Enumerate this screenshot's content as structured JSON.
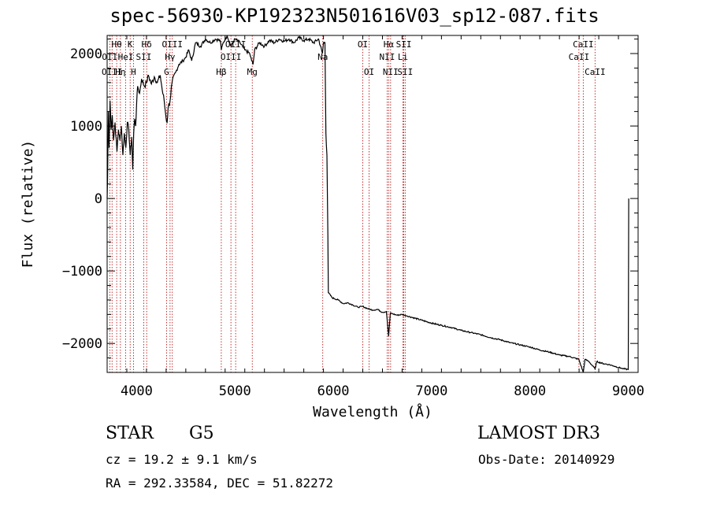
{
  "title": "spec-56930-KP192323N501616V03_sp12-087.fits",
  "chart_data": {
    "type": "line",
    "title": "spec-56930-KP192323N501616V03_sp12-087.fits",
    "xlabel": "Wavelength (Å)",
    "ylabel": "Flux (relative)",
    "xlim": [
      3700,
      9100
    ],
    "ylim": [
      -2400,
      2250
    ],
    "xticks": [
      4000,
      5000,
      6000,
      7000,
      8000,
      9000
    ],
    "yticks": [
      -2000,
      -1000,
      0,
      1000,
      2000
    ],
    "series": [
      {
        "name": "flux",
        "points": [
          [
            3700,
            0
          ],
          [
            3705,
            300
          ],
          [
            3712,
            1200
          ],
          [
            3720,
            700
          ],
          [
            3730,
            1350
          ],
          [
            3740,
            950
          ],
          [
            3752,
            1150
          ],
          [
            3765,
            800
          ],
          [
            3780,
            1050
          ],
          [
            3800,
            650
          ],
          [
            3815,
            950
          ],
          [
            3830,
            800
          ],
          [
            3845,
            1000
          ],
          [
            3860,
            600
          ],
          [
            3875,
            900
          ],
          [
            3890,
            700
          ],
          [
            3905,
            1050
          ],
          [
            3920,
            950
          ],
          [
            3935,
            600
          ],
          [
            3950,
            850
          ],
          [
            3960,
            400
          ],
          [
            3970,
            900
          ],
          [
            3980,
            1100
          ],
          [
            3990,
            1000
          ],
          [
            4000,
            1300
          ],
          [
            4010,
            1550
          ],
          [
            4030,
            1450
          ],
          [
            4050,
            1650
          ],
          [
            4080,
            1550
          ],
          [
            4100,
            1600
          ],
          [
            4120,
            1700
          ],
          [
            4150,
            1580
          ],
          [
            4180,
            1680
          ],
          [
            4210,
            1600
          ],
          [
            4240,
            1700
          ],
          [
            4260,
            1500
          ],
          [
            4280,
            1350
          ],
          [
            4300,
            1100
          ],
          [
            4310,
            1050
          ],
          [
            4320,
            1250
          ],
          [
            4340,
            1350
          ],
          [
            4360,
            1600
          ],
          [
            4400,
            1750
          ],
          [
            4430,
            1850
          ],
          [
            4470,
            1900
          ],
          [
            4500,
            1950
          ],
          [
            4530,
            2050
          ],
          [
            4560,
            1900
          ],
          [
            4600,
            2150
          ],
          [
            4650,
            2100
          ],
          [
            4700,
            2200
          ],
          [
            4750,
            2150
          ],
          [
            4800,
            2200
          ],
          [
            4850,
            2180
          ],
          [
            4861,
            2050
          ],
          [
            4880,
            2150
          ],
          [
            4920,
            2250
          ],
          [
            4960,
            2100
          ],
          [
            5000,
            2200
          ],
          [
            5050,
            2150
          ],
          [
            5100,
            2050
          ],
          [
            5150,
            2000
          ],
          [
            5170,
            1900
          ],
          [
            5184,
            1850
          ],
          [
            5200,
            2050
          ],
          [
            5250,
            2150
          ],
          [
            5300,
            2100
          ],
          [
            5350,
            2180
          ],
          [
            5400,
            2150
          ],
          [
            5450,
            2200
          ],
          [
            5500,
            2170
          ],
          [
            5550,
            2200
          ],
          [
            5600,
            2150
          ],
          [
            5650,
            2220
          ],
          [
            5700,
            2180
          ],
          [
            5750,
            2200
          ],
          [
            5800,
            2150
          ],
          [
            5850,
            2200
          ],
          [
            5890,
            2000
          ],
          [
            5900,
            2150
          ],
          [
            5915,
            2150
          ],
          [
            5925,
            900
          ],
          [
            5935,
            600
          ],
          [
            5945,
            -500
          ],
          [
            5950,
            -1300
          ],
          [
            5990,
            -1370
          ],
          [
            6050,
            -1400
          ],
          [
            6100,
            -1450
          ],
          [
            6150,
            -1440
          ],
          [
            6200,
            -1470
          ],
          [
            6250,
            -1500
          ],
          [
            6300,
            -1490
          ],
          [
            6350,
            -1520
          ],
          [
            6400,
            -1540
          ],
          [
            6450,
            -1530
          ],
          [
            6500,
            -1570
          ],
          [
            6540,
            -1560
          ],
          [
            6563,
            -1900
          ],
          [
            6580,
            -1580
          ],
          [
            6600,
            -1590
          ],
          [
            6650,
            -1610
          ],
          [
            6700,
            -1600
          ],
          [
            6750,
            -1620
          ],
          [
            6800,
            -1640
          ],
          [
            6900,
            -1680
          ],
          [
            7000,
            -1720
          ],
          [
            7100,
            -1750
          ],
          [
            7200,
            -1780
          ],
          [
            7300,
            -1820
          ],
          [
            7400,
            -1850
          ],
          [
            7500,
            -1880
          ],
          [
            7600,
            -1920
          ],
          [
            7700,
            -1950
          ],
          [
            7800,
            -1990
          ],
          [
            7900,
            -2020
          ],
          [
            8000,
            -2050
          ],
          [
            8100,
            -2090
          ],
          [
            8200,
            -2120
          ],
          [
            8300,
            -2160
          ],
          [
            8400,
            -2180
          ],
          [
            8498,
            -2220
          ],
          [
            8542,
            -2400
          ],
          [
            8560,
            -2220
          ],
          [
            8600,
            -2250
          ],
          [
            8662,
            -2350
          ],
          [
            8680,
            -2250
          ],
          [
            8750,
            -2280
          ],
          [
            8800,
            -2290
          ],
          [
            8850,
            -2310
          ],
          [
            8900,
            -2330
          ],
          [
            8950,
            -2350
          ],
          [
            9000,
            -2360
          ],
          [
            9005,
            0
          ]
        ]
      }
    ],
    "lines": [
      {
        "wl": 3727,
        "label": "OII",
        "row": 2
      },
      {
        "wl": 3750,
        "label": "OIII",
        "row": 3
      },
      {
        "wl": 3797,
        "label": "Hθ",
        "row": 1
      },
      {
        "wl": 3835,
        "label": "Hη",
        "row": 3
      },
      {
        "wl": 3889,
        "label": "HeI",
        "row": 2
      },
      {
        "wl": 3934,
        "label": "K",
        "row": 1
      },
      {
        "wl": 3968,
        "label": "H",
        "row": 3
      },
      {
        "wl": 4072,
        "label": "SII",
        "row": 2
      },
      {
        "wl": 4102,
        "label": "Hδ",
        "row": 1
      },
      {
        "wl": 4304,
        "label": "G",
        "row": 3
      },
      {
        "wl": 4340,
        "label": "Hγ",
        "row": 2
      },
      {
        "wl": 4363,
        "label": "OIII",
        "row": 1
      },
      {
        "wl": 4861,
        "label": "Hβ",
        "row": 3
      },
      {
        "wl": 4959,
        "label": "OIII",
        "row": 2
      },
      {
        "wl": 5007,
        "label": "OIII",
        "row": 1
      },
      {
        "wl": 5176,
        "label": "Mg",
        "row": 3
      },
      {
        "wl": 5893,
        "label": "Na",
        "row": 2
      },
      {
        "wl": 6300,
        "label": "OI",
        "row": 1
      },
      {
        "wl": 6364,
        "label": "OI",
        "row": 3
      },
      {
        "wl": 6548,
        "label": "NII",
        "row": 2
      },
      {
        "wl": 6563,
        "label": "Hα",
        "row": 1
      },
      {
        "wl": 6583,
        "label": "NII",
        "row": 3
      },
      {
        "wl": 6708,
        "label": "Li",
        "row": 2
      },
      {
        "wl": 6717,
        "label": "SII",
        "row": 1
      },
      {
        "wl": 6731,
        "label": "SII",
        "row": 3
      },
      {
        "wl": 8498,
        "label": "CaII",
        "row": 2
      },
      {
        "wl": 8542,
        "label": "CaII",
        "row": 1
      },
      {
        "wl": 8662,
        "label": "CaII",
        "row": 3
      }
    ]
  },
  "info": {
    "class": "STAR",
    "subclass": "G5",
    "survey": "LAMOST DR3",
    "cz": "cz = 19.2 ± 9.1 km/s",
    "obs_date": "Obs-Date: 20140929",
    "coords": "RA = 292.33584, DEC =  51.82272"
  }
}
